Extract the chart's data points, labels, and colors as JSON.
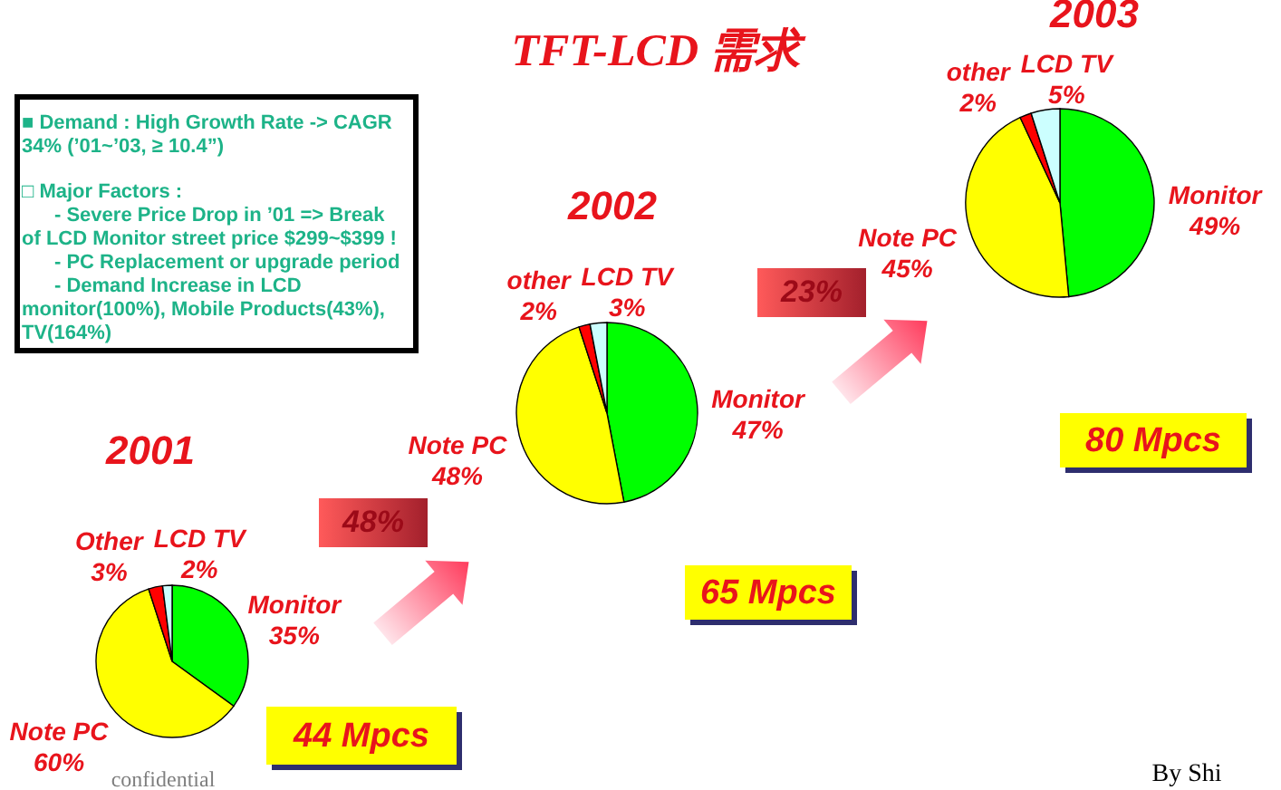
{
  "chart_data": [
    {
      "type": "other",
      "title": "TFT-LCD 需求",
      "annotations": [
        "■ Demand : High Growth Rate -> CAGR 34% (’01~’03, ≥ 10.4”)",
        "□ Major Factors :",
        "- Severe Price Drop in ’01 => Break of LCD Monitor street price $299~$399 !",
        "- PC Replacement or upgrade period",
        "- Demand Increase in LCD monitor(100%), Mobile Products(43%), TV(164%)",
        "confidential",
        "By Shi"
      ]
    },
    {
      "type": "pie",
      "title": "2001",
      "categories": [
        "Monitor",
        "Note PC",
        "Other",
        "LCD TV"
      ],
      "values": [
        35,
        60,
        3,
        2
      ],
      "value_labels": [
        "35%",
        "60%",
        "3%",
        "2%"
      ],
      "colors": [
        "#00ff00",
        "#ffff00",
        "#ff0000",
        "#ccffff"
      ],
      "annotations": [
        "44 Mpcs"
      ]
    },
    {
      "type": "pie",
      "title": "2002",
      "categories": [
        "Monitor",
        "Note PC",
        "other",
        "LCD TV"
      ],
      "values": [
        47,
        48,
        2,
        3
      ],
      "value_labels": [
        "47%",
        "48%",
        "2%",
        "3%"
      ],
      "colors": [
        "#00ff00",
        "#ffff00",
        "#ff0000",
        "#ccffff"
      ],
      "annotations": [
        "65 Mpcs",
        "48%"
      ]
    },
    {
      "type": "pie",
      "title": "2003",
      "categories": [
        "Monitor",
        "Note PC",
        "other",
        "LCD TV"
      ],
      "values": [
        49,
        45,
        2,
        5
      ],
      "value_labels": [
        "49%",
        "45%",
        "2%",
        "5%"
      ],
      "colors": [
        "#00ff00",
        "#ffff00",
        "#ff0000",
        "#ccffff"
      ],
      "annotations": [
        "80 Mpcs",
        "23%"
      ]
    }
  ]
}
